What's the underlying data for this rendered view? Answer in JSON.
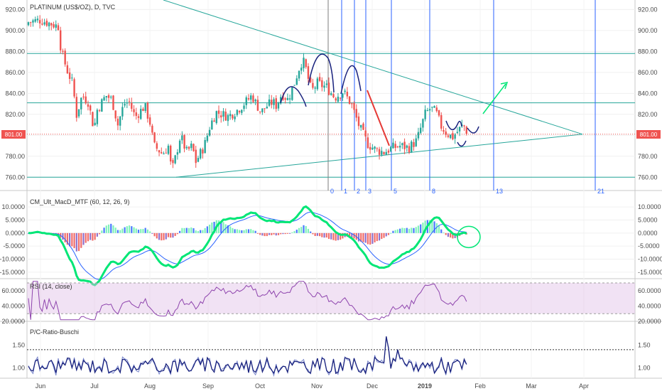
{
  "chart_data": [
    {
      "type": "candlestick",
      "title": "PLATINUM (US$/OZ), D, TVC",
      "ylim": [
        750,
        925
      ],
      "y_ticks": [
        "920.00",
        "900.00",
        "880.00",
        "860.00",
        "840.00",
        "820.00",
        "800.00",
        "780.00",
        "760.00"
      ],
      "current_price_tag": "801.00",
      "x_ticks": [
        "Jun",
        "Jul",
        "Aug",
        "Sep",
        "Oct",
        "Nov",
        "Dec",
        "2019",
        "Feb",
        "Mar",
        "Apr"
      ],
      "fib_time_labels": [
        "0",
        "1",
        "2",
        "3",
        "5",
        "8",
        "13",
        "21"
      ],
      "horizontal_levels": [
        878,
        831,
        760
      ],
      "line_color": "#26a69a",
      "up_color": "#26a69a",
      "down_color": "#ef5350"
    },
    {
      "type": "line",
      "title": "CM_Ult_MacD_MTF (60, 12, 26, 9)",
      "ylim": [
        -17500,
        12500
      ],
      "y_ticks": [
        "10.0000",
        "5.0000",
        "0.0000",
        "-5.0000",
        "-10.0000",
        "-15.0000"
      ],
      "series": []
    },
    {
      "type": "line",
      "title": "RSI (14, close)",
      "ylim": [
        20,
        70
      ],
      "y_ticks": [
        "60.0000",
        "40.0000",
        "20.0000"
      ],
      "band_color": "#e1bee7",
      "line_color": "#8e44ad"
    },
    {
      "type": "line",
      "title": "P/C-Ratio-Buschi",
      "ylim": [
        0.8,
        1.9
      ],
      "y_ticks": [
        "1.50",
        "1.00"
      ],
      "line_color": "#1a237e",
      "reference_level": 1.4
    }
  ]
}
